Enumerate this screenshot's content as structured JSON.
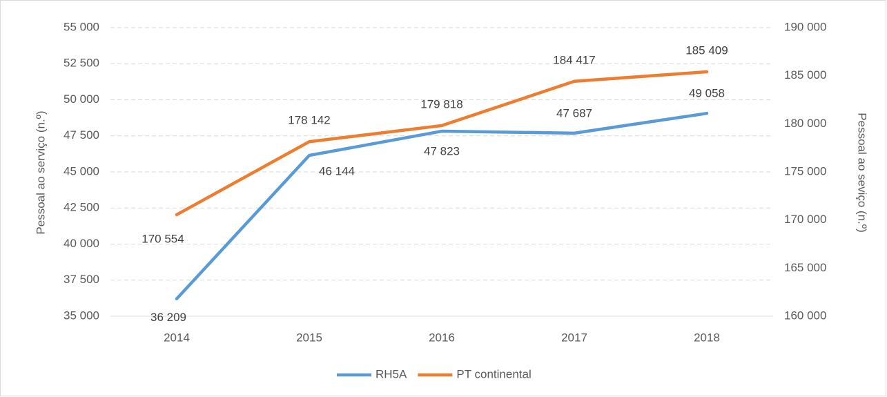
{
  "chart_data": {
    "type": "line",
    "categories": [
      "2014",
      "2015",
      "2016",
      "2017",
      "2018"
    ],
    "series": [
      {
        "name": "RH5A",
        "color": "#5b9bd5",
        "values": [
          36209,
          46144,
          47823,
          47687,
          49058
        ],
        "value_labels": [
          "36 209",
          "46 144",
          "47 823",
          "47 687",
          "49 058"
        ]
      },
      {
        "name": "PT continental",
        "color": "#ed7d31",
        "axis": "y2",
        "values": [
          170554,
          178142,
          179818,
          184417,
          185409
        ],
        "value_labels": [
          "170 554",
          "178 142",
          "179 818",
          "184 417",
          "185 409"
        ]
      }
    ],
    "ylabel": "Pessoal ao serviço (n.º)",
    "y2label": "Pessoal ao seviço (n.º)",
    "ylim": [
      35000,
      55000
    ],
    "yticks": [
      {
        "value": 35000,
        "label": "35 000"
      },
      {
        "value": 37500,
        "label": "37 500"
      },
      {
        "value": 40000,
        "label": "40 000"
      },
      {
        "value": 42500,
        "label": "42 500"
      },
      {
        "value": 45000,
        "label": "45 000"
      },
      {
        "value": 47500,
        "label": "47 500"
      },
      {
        "value": 50000,
        "label": "50 000"
      },
      {
        "value": 52500,
        "label": "52 500"
      },
      {
        "value": 55000,
        "label": "55 000"
      }
    ],
    "y2lim": [
      160000,
      190000
    ],
    "y2ticks": [
      {
        "value": 160000,
        "label": "160 000"
      },
      {
        "value": 165000,
        "label": "165 000"
      },
      {
        "value": 170000,
        "label": "170 000"
      },
      {
        "value": 175000,
        "label": "175 000"
      },
      {
        "value": 180000,
        "label": "180 000"
      },
      {
        "value": 185000,
        "label": "185 000"
      },
      {
        "value": 190000,
        "label": "190 000"
      }
    ],
    "grid": true,
    "legend": "bottom"
  }
}
